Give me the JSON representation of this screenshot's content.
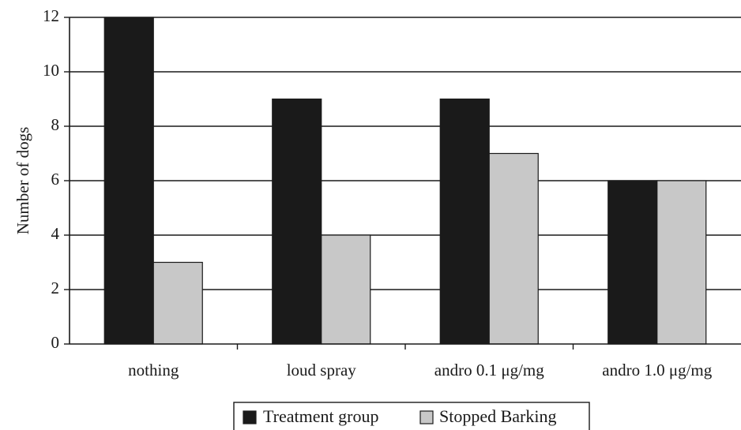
{
  "chart_data": {
    "type": "bar",
    "title": "",
    "xlabel": "",
    "ylabel": "Number of dogs",
    "categories": [
      "nothing",
      "loud spray",
      "andro 0.1 μg/mg",
      "andro 1.0 μg/mg"
    ],
    "series": [
      {
        "name": "Treatment group",
        "values": [
          12,
          9,
          9,
          6
        ],
        "color": "#1a1a1a"
      },
      {
        "name": "Stopped Barking",
        "values": [
          3,
          4,
          7,
          6
        ],
        "color": "#c8c8c8"
      }
    ],
    "ylim": [
      0,
      12
    ],
    "yticks": [
      0,
      2,
      4,
      6,
      8,
      10,
      12
    ],
    "grid": true,
    "legend": "bottom-center"
  }
}
